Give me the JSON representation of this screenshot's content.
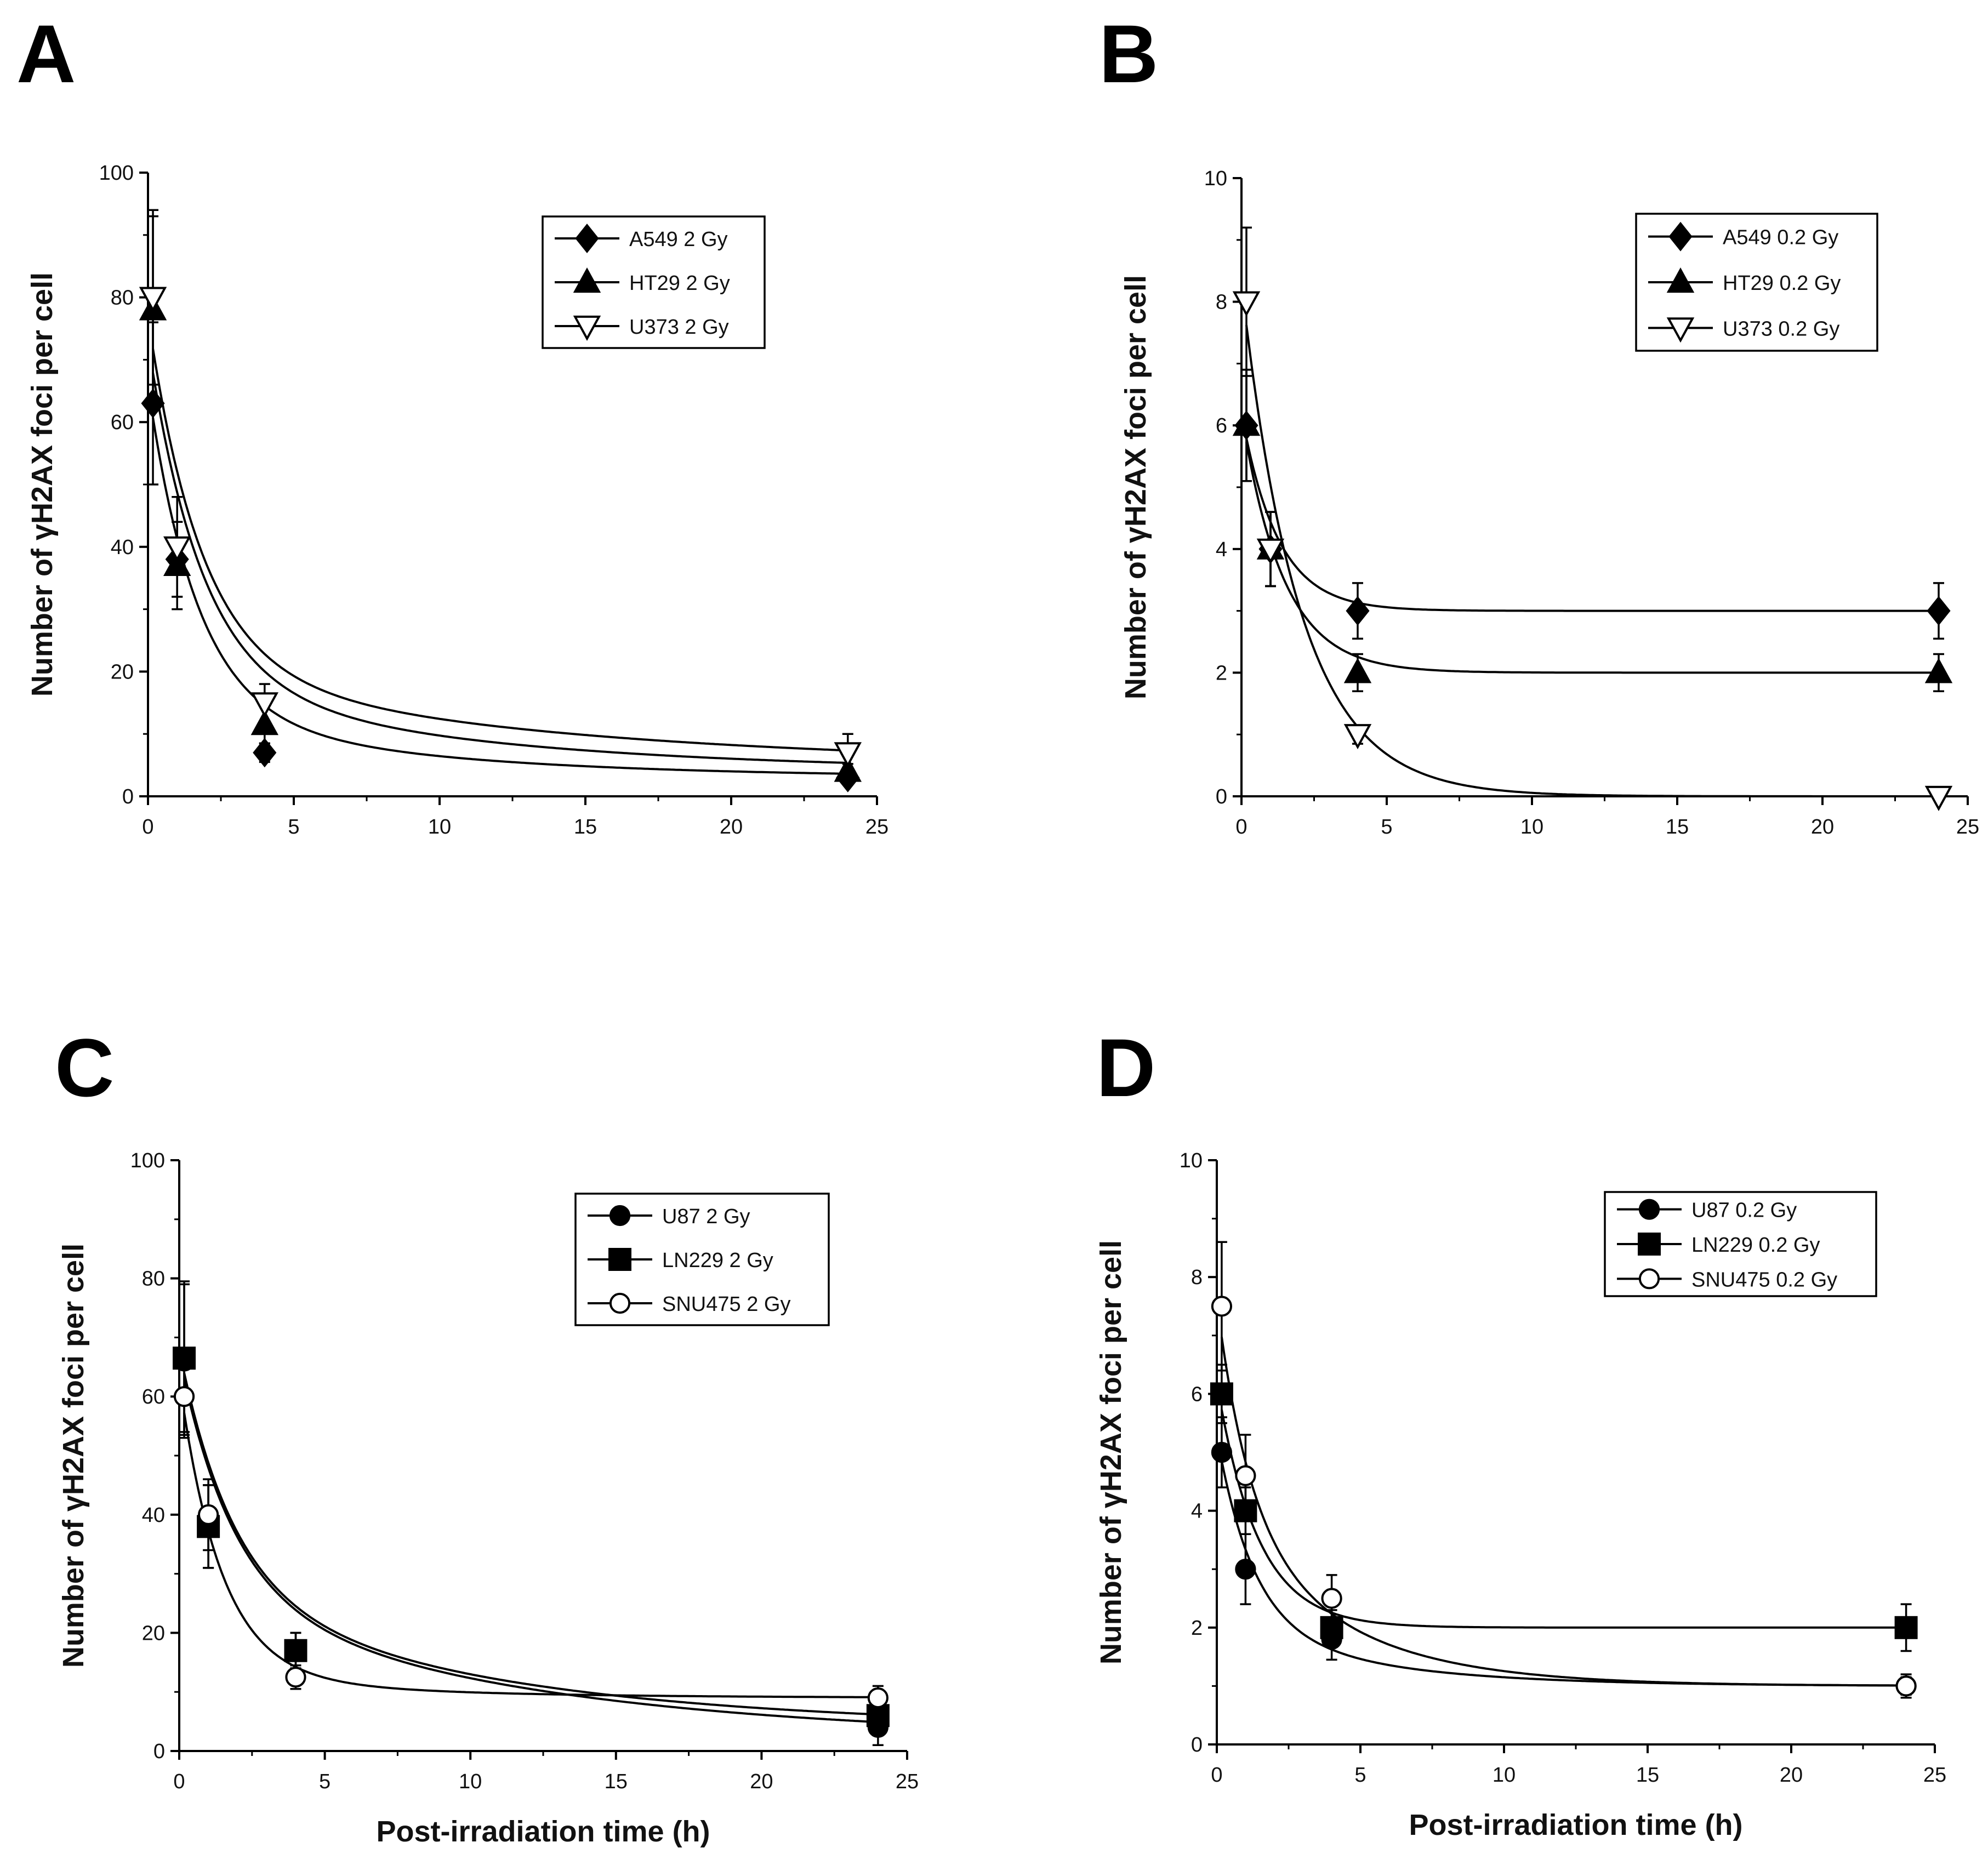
{
  "chart_data": [
    {
      "panel": "A",
      "type": "line",
      "title": "",
      "xlabel": "",
      "ylabel": "Number of γH2AX foci per cell",
      "xlim": [
        0,
        25
      ],
      "ylim": [
        0,
        100
      ],
      "x_ticks": [
        0,
        5,
        10,
        15,
        20,
        25
      ],
      "y_ticks": [
        0,
        20,
        40,
        60,
        80,
        100
      ],
      "grid": false,
      "legend_position": "top-right",
      "series": [
        {
          "name": "A549 2 Gy",
          "marker": "diamond-filled",
          "x": [
            0.17,
            1,
            4,
            24
          ],
          "y": [
            63,
            38,
            7,
            3
          ],
          "err": [
            13,
            6,
            1.5,
            1
          ],
          "fit": {
            "a": 52,
            "k": 0.6,
            "b": 11,
            "c": 0.12,
            "base": 3
          }
        },
        {
          "name": "HT29 2 Gy",
          "marker": "triangle-up-filled",
          "x": [
            0.17,
            1,
            4,
            24
          ],
          "y": [
            78,
            37,
            11.5,
            4
          ],
          "err": [
            15,
            7,
            3,
            1.2
          ],
          "fit": {
            "a": 54,
            "k": 0.55,
            "b": 15,
            "c": 0.1,
            "base": 4
          }
        },
        {
          "name": "U373 2 Gy",
          "marker": "triangle-down-open",
          "x": [
            0.17,
            1,
            4,
            24
          ],
          "y": [
            80,
            40,
            15,
            7
          ],
          "err": [
            14,
            8,
            3,
            3
          ],
          "fit": {
            "a": 56,
            "k": 0.55,
            "b": 16,
            "c": 0.08,
            "base": 5
          }
        }
      ]
    },
    {
      "panel": "B",
      "type": "line",
      "title": "",
      "xlabel": "",
      "ylabel": "Number of γH2AX foci per cell",
      "xlim": [
        0,
        25
      ],
      "ylim": [
        0,
        10
      ],
      "x_ticks": [
        0,
        5,
        10,
        15,
        20,
        25
      ],
      "y_ticks": [
        0,
        2,
        4,
        6,
        8,
        10
      ],
      "grid": false,
      "legend_position": "top-right",
      "series": [
        {
          "name": "A549 0.2 Gy",
          "marker": "diamond-filled",
          "x": [
            0.17,
            1,
            4,
            24
          ],
          "y": [
            6,
            4,
            3,
            3
          ],
          "err": [
            0.9,
            0.6,
            0.45,
            0.45
          ],
          "fit": {
            "a": 3.2,
            "k": 0.8,
            "b": 0,
            "c": 1,
            "base": 3
          }
        },
        {
          "name": "HT29 0.2 Gy",
          "marker": "triangle-up-filled",
          "x": [
            0.17,
            1,
            4,
            24
          ],
          "y": [
            6,
            4,
            2,
            2
          ],
          "err": [
            0.9,
            0.6,
            0.3,
            0.3
          ],
          "fit": {
            "a": 4.2,
            "k": 0.7,
            "b": 0,
            "c": 1,
            "base": 2
          }
        },
        {
          "name": "U373 0.2 Gy",
          "marker": "triangle-down-open",
          "x": [
            0.17,
            1,
            4,
            24
          ],
          "y": [
            8,
            4,
            1,
            0
          ],
          "err": [
            1.2,
            0.6,
            0.15,
            0.05
          ],
          "fit": {
            "a": 8.3,
            "k": 0.5,
            "b": 0,
            "c": 1,
            "base": 0
          }
        }
      ]
    },
    {
      "panel": "C",
      "type": "line",
      "title": "",
      "xlabel": "Post-irradiation time (h)",
      "ylabel": "Number of γH2AX foci per cell",
      "xlim": [
        0,
        25
      ],
      "ylim": [
        0,
        100
      ],
      "x_ticks": [
        0,
        5,
        10,
        15,
        20,
        25
      ],
      "y_ticks": [
        0,
        20,
        40,
        60,
        80,
        100
      ],
      "grid": false,
      "legend_position": "top-right",
      "series": [
        {
          "name": "U87 2 Gy",
          "marker": "circle-filled",
          "x": [
            0.17,
            1,
            4,
            24
          ],
          "y": [
            66,
            38,
            17,
            4
          ],
          "err": [
            13,
            7,
            3,
            3
          ],
          "fit": {
            "a": 40,
            "k": 0.55,
            "b": 25,
            "c": 0.09,
            "base": 2
          }
        },
        {
          "name": "LN229 2 Gy",
          "marker": "square-filled",
          "x": [
            0.17,
            1,
            4,
            24
          ],
          "y": [
            66.5,
            38,
            17,
            6
          ],
          "err": [
            13,
            7,
            3,
            3
          ],
          "fit": {
            "a": 40,
            "k": 0.55,
            "b": 24,
            "c": 0.1,
            "base": 4
          }
        },
        {
          "name": "SNU475 2 Gy",
          "marker": "circle-open",
          "x": [
            0.17,
            1,
            4,
            24
          ],
          "y": [
            60,
            40,
            12.5,
            9
          ],
          "err": [
            6,
            6,
            2,
            2
          ],
          "fit": {
            "a": 50,
            "k": 0.7,
            "b": 4,
            "c": 0.15,
            "base": 9
          }
        }
      ]
    },
    {
      "panel": "D",
      "type": "line",
      "title": "",
      "xlabel": "Post-irradiation time (h)",
      "ylabel": "Number of γH2AX foci per cell",
      "xlim": [
        0,
        25
      ],
      "ylim": [
        0,
        10
      ],
      "x_ticks": [
        0,
        5,
        10,
        15,
        20,
        25
      ],
      "y_ticks": [
        0,
        2,
        4,
        6,
        8,
        10
      ],
      "grid": false,
      "legend_position": "top-right",
      "series": [
        {
          "name": "U87 0.2 Gy",
          "marker": "circle-filled",
          "x": [
            0.17,
            1,
            4,
            24
          ],
          "y": [
            5,
            3,
            1.8,
            1
          ],
          "err": [
            0.6,
            0.6,
            0.35,
            0.2
          ],
          "fit": {
            "a": 3.2,
            "k": 0.8,
            "b": 1.1,
            "c": 0.2,
            "base": 1
          }
        },
        {
          "name": "LN229 0.2 Gy",
          "marker": "square-filled",
          "x": [
            0.17,
            1,
            4,
            24
          ],
          "y": [
            6,
            4,
            2,
            2
          ],
          "err": [
            0.5,
            0.4,
            0.3,
            0.4
          ],
          "fit": {
            "a": 4.2,
            "k": 0.7,
            "b": 0,
            "c": 1,
            "base": 2
          }
        },
        {
          "name": "SNU475 0.2 Gy",
          "marker": "circle-open",
          "x": [
            0.17,
            1,
            4,
            24
          ],
          "y": [
            7.5,
            4.6,
            2.5,
            1
          ],
          "err": [
            1.1,
            0.7,
            0.4,
            0.15
          ],
          "fit": {
            "a": 3.5,
            "k": 0.9,
            "b": 3.1,
            "c": 0.25,
            "base": 1
          }
        }
      ]
    }
  ]
}
